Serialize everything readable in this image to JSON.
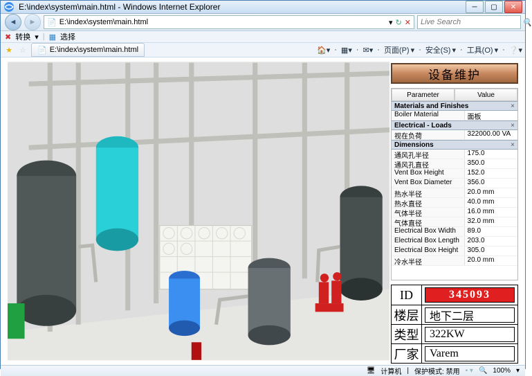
{
  "window": {
    "title": "E:\\index\\system\\main.html - Windows Internet Explorer",
    "address": "E:\\index\\system\\main.html",
    "search_placeholder": "Live Search",
    "tab_label": "E:\\index\\system\\main.html",
    "toolbar": {
      "convert": "转换",
      "select": "选择"
    },
    "menus": {
      "page": "页面(P)",
      "safety": "安全(S)",
      "tools": "工具(O)"
    }
  },
  "maint_button": "设备维护",
  "param_headers": {
    "parameter": "Parameter",
    "value": "Value"
  },
  "sections": [
    {
      "title": "Materials and Finishes",
      "rows": [
        {
          "name": "Boiler Material",
          "value": "面板"
        }
      ]
    },
    {
      "title": "Electrical - Loads",
      "rows": [
        {
          "name": "视在负荷",
          "value": "322000.00 VA"
        }
      ]
    },
    {
      "title": "Dimensions",
      "rows": [
        {
          "name": "通风孔半径",
          "value": "175.0"
        },
        {
          "name": "通风孔直径",
          "value": "350.0"
        },
        {
          "name": "Vent Box Height",
          "value": "152.0"
        },
        {
          "name": "Vent Box Diameter",
          "value": "356.0"
        },
        {
          "name": "热水半径",
          "value": "20.0 mm"
        },
        {
          "name": "热水直径",
          "value": "40.0 mm"
        },
        {
          "name": "气体半径",
          "value": "16.0 mm"
        },
        {
          "name": "气体直径",
          "value": "32.0 mm"
        },
        {
          "name": "Electrical Box Width",
          "value": "89.0"
        },
        {
          "name": "Electrical Box Length",
          "value": "203.0"
        },
        {
          "name": "Electrical Box Height",
          "value": "305.0"
        },
        {
          "name": "冷水半径",
          "value": "20.0 mm"
        }
      ]
    }
  ],
  "info": {
    "id": {
      "label": "ID",
      "value": "345093"
    },
    "floor": {
      "label": "楼层",
      "value": "地下二层"
    },
    "type": {
      "label": "类型",
      "value": "322KW"
    },
    "vendor": {
      "label": "厂家",
      "value": "Varem"
    }
  },
  "statusbar": {
    "computer": "计算机",
    "protected": "保护模式: 禁用",
    "zoom": "100%"
  },
  "palette": {
    "tank_cyan": "#2ad0d8",
    "tank_blue": "#3a8ff0",
    "tank_dark": "#505858",
    "pump_red": "#d02020",
    "valve_green": "#20a040",
    "pipe": "#d0d0ca",
    "wall": "#dedede",
    "floor": "#e8e8e4",
    "red_mark": "#b01010"
  }
}
